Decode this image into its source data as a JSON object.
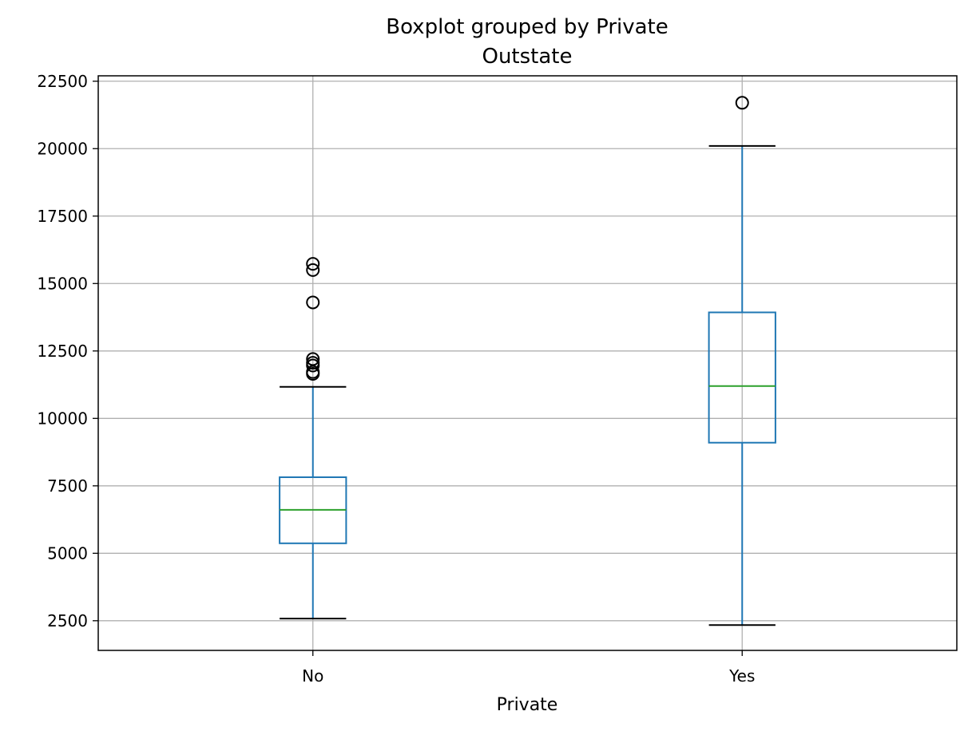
{
  "chart_data": {
    "type": "box",
    "suptitle": "Boxplot grouped by Private",
    "title": "Outstate",
    "xlabel": "Private",
    "ylabel": "",
    "categories": [
      "No",
      "Yes"
    ],
    "ylim": [
      1400,
      22700
    ],
    "yticks": [
      2500,
      5000,
      7500,
      10000,
      12500,
      15000,
      17500,
      20000,
      22500
    ],
    "ytick_labels": [
      "2500",
      "5000",
      "7500",
      "10000",
      "12500",
      "15000",
      "17500",
      "20000",
      "22500"
    ],
    "grid": true,
    "legend": "none",
    "boxes": [
      {
        "category": "No",
        "whisker_low": 2580,
        "q1": 5370,
        "median": 6610,
        "q3": 7820,
        "whisker_high": 11170,
        "fliers": [
          11650,
          11720,
          11960,
          12060,
          12200,
          14300,
          15500,
          15730
        ]
      },
      {
        "category": "Yes",
        "whisker_low": 2340,
        "q1": 9100,
        "median": 11200,
        "q3": 13930,
        "whisker_high": 20100,
        "fliers": [
          21700
        ]
      }
    ],
    "colors": {
      "box": "#1f77b4",
      "median": "#2ca02c",
      "caps": "#000000",
      "flier": "#000000",
      "grid": "#b0b0b0",
      "frame": "#000000"
    }
  }
}
